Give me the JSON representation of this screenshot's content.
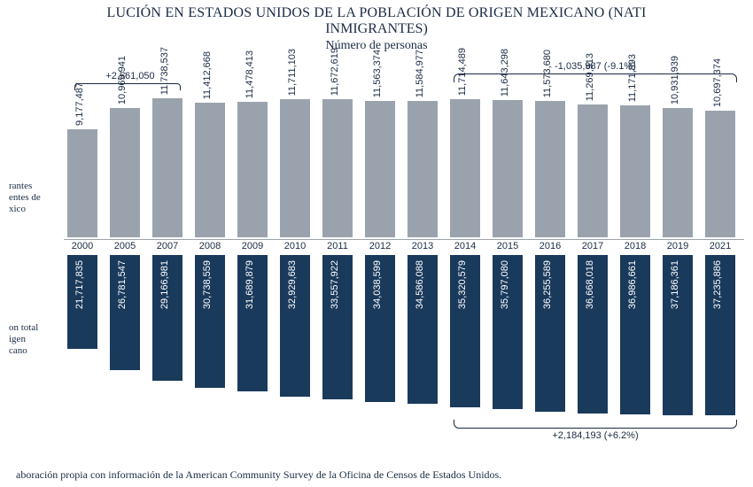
{
  "title_line1": "LUCIÓN EN ESTADOS UNIDOS DE LA POBLACIÓN DE ORIGEN MEXICANO (NATI",
  "title_line2": "INMIGRANTES)",
  "subtitle": "Número de personas",
  "label_upper": "rantes\nentes de\nxico",
  "label_lower": "on total\nigen\ncano",
  "annotations": {
    "top_left": "+2,561,050",
    "top_right": "-1,035,987 (-9.1%)",
    "bottom_right": "+2,184,193 (+6.2%)"
  },
  "source": "aboración propia con información de la American Community Survey de la Oficina de Censos de Estados Unidos.",
  "chart": {
    "type": "paired-bar-vertical-mirror",
    "upper_color": "#9aa3ad",
    "lower_color": "#1a3a5c",
    "background_color": "#ffffff",
    "value_fontsize": 11,
    "year_fontsize": 11,
    "upper_max": 12000000,
    "lower_max": 38000000,
    "years": [
      "2000",
      "2005",
      "2007",
      "2008",
      "2009",
      "2010",
      "2011",
      "2012",
      "2013",
      "2014",
      "2015",
      "2016",
      "2017",
      "2018",
      "2019",
      "2021"
    ],
    "upper_values": [
      9177487,
      10969941,
      11738537,
      11412668,
      11478413,
      11711103,
      11672619,
      11563374,
      11584977,
      11714489,
      11643298,
      11573680,
      11269913,
      11171893,
      10931939,
      10697374
    ],
    "lower_values": [
      21717835,
      26781547,
      29166981,
      30738559,
      31689879,
      32929683,
      33557922,
      34038599,
      34586088,
      35320579,
      35797080,
      36255589,
      36668018,
      36986661,
      37186361,
      37235886
    ],
    "upper_labels": [
      "9,177,487",
      "10,969,941",
      "11,738,537",
      "11,412,668",
      "11,478,413",
      "11,711,103",
      "11,672,619",
      "11,563,374",
      "11,584,977",
      "11,714,489",
      "11,643,298",
      "11,573,680",
      "11,269,913",
      "11,171,893",
      "10,931,939",
      "10,697,374"
    ],
    "lower_labels": [
      "21,717,835",
      "26,781,547",
      "29,166,981",
      "30,738,559",
      "31,689,879",
      "32,929,683",
      "33,557,922",
      "34,038,599",
      "34,586,088",
      "35,320,579",
      "35,797,080",
      "36,255,589",
      "36,668,018",
      "36,986,661",
      "37,186,361",
      "37,235,886"
    ]
  }
}
